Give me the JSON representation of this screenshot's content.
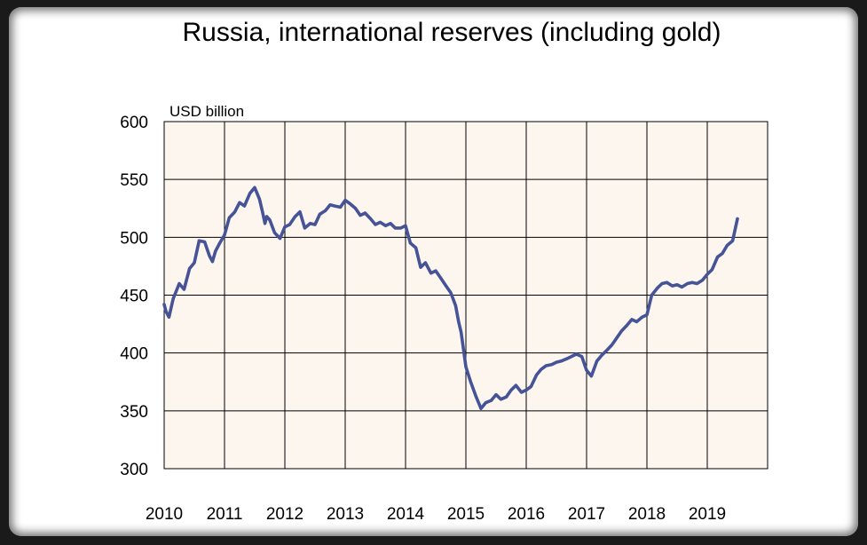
{
  "chart_data": {
    "type": "line",
    "title": "Russia, international reserves (including gold)",
    "unit_label": "USD billion",
    "xlabel": "",
    "ylabel": "",
    "xlim": [
      2010,
      2020
    ],
    "ylim": [
      300,
      600
    ],
    "x_ticks": [
      "2010",
      "2011",
      "2012",
      "2013",
      "2014",
      "2015",
      "2016",
      "2017",
      "2018",
      "2019"
    ],
    "y_ticks": [
      "300",
      "350",
      "400",
      "450",
      "500",
      "550",
      "600"
    ],
    "grid": true,
    "legend": "none",
    "colors": {
      "line": "#465397",
      "plot_bg": "#fcf6ef",
      "grid": "#000000"
    },
    "series": [
      {
        "x": [
          2010.0,
          2010.03,
          2010.08,
          2010.15,
          2010.25,
          2010.33,
          2010.42,
          2010.5,
          2010.58,
          2010.67,
          2010.75,
          2010.8,
          2010.85,
          2010.92,
          2011.0,
          2011.08,
          2011.17,
          2011.25,
          2011.33,
          2011.42,
          2011.5,
          2011.58,
          2011.63,
          2011.67,
          2011.7,
          2011.75,
          2011.83,
          2011.92,
          2012.0,
          2012.08,
          2012.17,
          2012.25,
          2012.33,
          2012.42,
          2012.5,
          2012.58,
          2012.67,
          2012.75,
          2012.83,
          2012.92,
          2013.0,
          2013.08,
          2013.17,
          2013.25,
          2013.33,
          2013.42,
          2013.5,
          2013.58,
          2013.67,
          2013.75,
          2013.83,
          2013.92,
          2014.0,
          2014.08,
          2014.17,
          2014.25,
          2014.33,
          2014.42,
          2014.5,
          2014.58,
          2014.67,
          2014.75,
          2014.83,
          2014.88,
          2014.92,
          2015.0,
          2015.08,
          2015.17,
          2015.25,
          2015.33,
          2015.42,
          2015.5,
          2015.58,
          2015.67,
          2015.75,
          2015.83,
          2015.92,
          2016.0,
          2016.08,
          2016.17,
          2016.25,
          2016.33,
          2016.42,
          2016.5,
          2016.58,
          2016.67,
          2016.75,
          2016.83,
          2016.92,
          2017.0,
          2017.08,
          2017.17,
          2017.25,
          2017.33,
          2017.42,
          2017.5,
          2017.58,
          2017.67,
          2017.75,
          2017.83,
          2017.92,
          2018.0,
          2018.08,
          2018.17,
          2018.25,
          2018.33,
          2018.42,
          2018.5,
          2018.58,
          2018.67,
          2018.75,
          2018.83,
          2018.92,
          2019.0,
          2019.08,
          2019.17,
          2019.25,
          2019.33,
          2019.42,
          2019.5
        ],
        "y": [
          442,
          436,
          431,
          447,
          460,
          455,
          473,
          478,
          497,
          496,
          484,
          479,
          488,
          495,
          502,
          517,
          522,
          530,
          527,
          538,
          543,
          533,
          522,
          512,
          518,
          515,
          504,
          499,
          509,
          511,
          518,
          522,
          508,
          512,
          511,
          520,
          523,
          528,
          527,
          526,
          532,
          529,
          525,
          519,
          521,
          516,
          511,
          513,
          510,
          512,
          508,
          508,
          510,
          495,
          491,
          474,
          478,
          469,
          471,
          465,
          458,
          452,
          441,
          427,
          418,
          388,
          375,
          362,
          352,
          357,
          359,
          364,
          360,
          362,
          368,
          372,
          366,
          368,
          371,
          381,
          386,
          389,
          390,
          392,
          393,
          395,
          397,
          399,
          397,
          385,
          380,
          393,
          398,
          402,
          407,
          413,
          419,
          424,
          429,
          427,
          431,
          433,
          450,
          456,
          460,
          461,
          458,
          459,
          457,
          460,
          461,
          460,
          463,
          468,
          472,
          483,
          486,
          493,
          497,
          516
        ]
      }
    ]
  }
}
